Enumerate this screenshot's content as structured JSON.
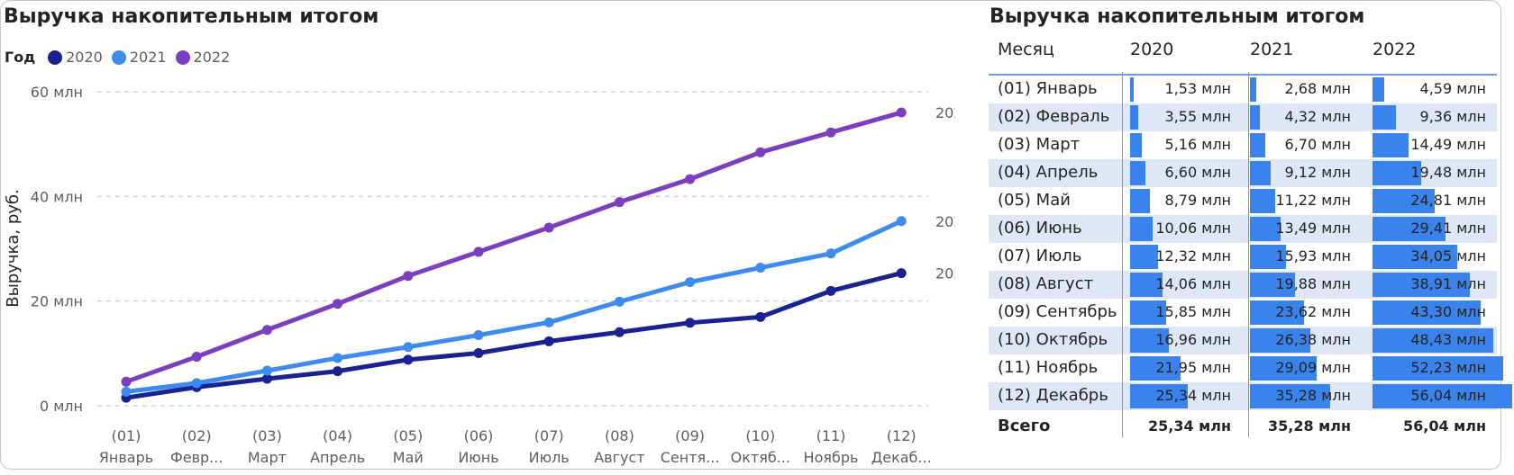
{
  "left_panel": {
    "title": "Выручка накопительным итогом",
    "legend_title": "Год"
  },
  "right_panel": {
    "title": "Выручка накопительным итогом",
    "columns": [
      "Месяц",
      "2020",
      "2021",
      "2022"
    ],
    "rows": [
      {
        "month": "(01) Январь",
        "values": [
          "1,53 млн",
          "2,68 млн",
          "4,59 млн"
        ]
      },
      {
        "month": "(02) Февраль",
        "values": [
          "3,55 млн",
          "4,32 млн",
          "9,36 млн"
        ]
      },
      {
        "month": "(03) Март",
        "values": [
          "5,16 млн",
          "6,70 млн",
          "14,49 млн"
        ]
      },
      {
        "month": "(04) Апрель",
        "values": [
          "6,60 млн",
          "9,12 млн",
          "19,48 млн"
        ]
      },
      {
        "month": "(05) Май",
        "values": [
          "8,79 млн",
          "11,22 млн",
          "24,81 млн"
        ]
      },
      {
        "month": "(06) Июнь",
        "values": [
          "10,06 млн",
          "13,49 млн",
          "29,41 млн"
        ]
      },
      {
        "month": "(07) Июль",
        "values": [
          "12,32 млн",
          "15,93 млн",
          "34,05 млн"
        ]
      },
      {
        "month": "(08) Август",
        "values": [
          "14,06 млн",
          "19,88 млн",
          "38,91 млн"
        ]
      },
      {
        "month": "(09) Сентябрь",
        "values": [
          "15,85 млн",
          "23,62 млн",
          "43,30 млн"
        ]
      },
      {
        "month": "(10) Октябрь",
        "values": [
          "16,96 млн",
          "26,38 млн",
          "48,43 млн"
        ]
      },
      {
        "month": "(11) Ноябрь",
        "values": [
          "21,95 млн",
          "29,09 млн",
          "52,23 млн"
        ]
      },
      {
        "month": "(12) Декабрь",
        "values": [
          "25,34 млн",
          "35,28 млн",
          "56,04 млн"
        ]
      }
    ],
    "total": {
      "label": "Всего",
      "values": [
        "25,34 млн",
        "35,28 млн",
        "56,04 млн"
      ]
    },
    "bar_values": [
      [
        1.53,
        3.55,
        5.16,
        6.6,
        8.79,
        10.06,
        12.32,
        14.06,
        15.85,
        16.96,
        21.95,
        25.34
      ],
      [
        2.68,
        4.32,
        6.7,
        9.12,
        11.22,
        13.49,
        15.93,
        19.88,
        23.62,
        26.38,
        29.09,
        35.28
      ],
      [
        4.59,
        9.36,
        14.49,
        19.48,
        24.81,
        29.41,
        34.05,
        38.91,
        43.3,
        48.43,
        52.23,
        56.04
      ]
    ],
    "bar_color": "#3a82ec"
  },
  "chart_data": {
    "type": "line",
    "title": "Выручка накопительным итогом",
    "xlabel": "",
    "ylabel": "Выручка, руб.",
    "ylim": [
      0,
      60
    ],
    "yticks": [
      0,
      20,
      40,
      60
    ],
    "ytick_labels": [
      "0 млн",
      "20 млн",
      "40 млн",
      "60 млн"
    ],
    "grid": true,
    "legend_title": "Год",
    "legend_position": "top-left",
    "categories": [
      [
        "(01)",
        "Январь"
      ],
      [
        "(02)",
        "Февр..."
      ],
      [
        "(03)",
        "Март"
      ],
      [
        "(04)",
        "Апрель"
      ],
      [
        "(05)",
        "Май"
      ],
      [
        "(06)",
        "Июнь"
      ],
      [
        "(07)",
        "Июль"
      ],
      [
        "(08)",
        "Август"
      ],
      [
        "(09)",
        "Сентя..."
      ],
      [
        "(10)",
        "Октяб..."
      ],
      [
        "(11)",
        "Ноябрь"
      ],
      [
        "(12)",
        "Декаб..."
      ]
    ],
    "series": [
      {
        "name": "2020",
        "color": "#1a2190",
        "values": [
          1.53,
          3.55,
          5.16,
          6.6,
          8.79,
          10.06,
          12.32,
          14.06,
          15.85,
          16.96,
          21.95,
          25.34
        ]
      },
      {
        "name": "2021",
        "color": "#3d8bef",
        "values": [
          2.68,
          4.32,
          6.7,
          9.12,
          11.22,
          13.49,
          15.93,
          19.88,
          23.62,
          26.38,
          29.09,
          35.28
        ]
      },
      {
        "name": "2022",
        "color": "#7b3ebf",
        "values": [
          4.59,
          9.36,
          14.49,
          19.48,
          24.81,
          29.41,
          34.05,
          38.91,
          43.3,
          48.43,
          52.23,
          56.04
        ]
      }
    ]
  }
}
